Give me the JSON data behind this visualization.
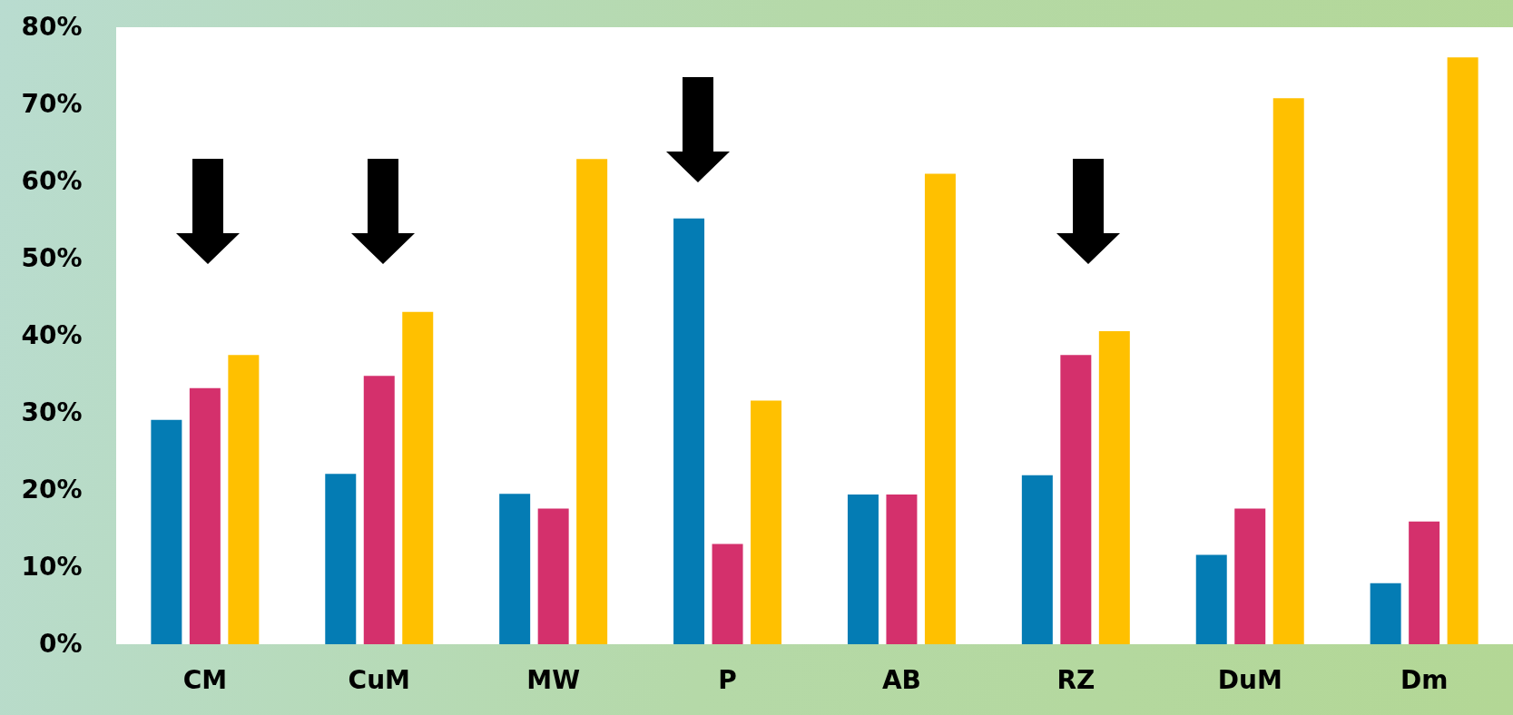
{
  "chart_data": {
    "type": "bar",
    "categories": [
      "CM",
      "CuM",
      "MW",
      "P",
      "AB",
      "RZ",
      "DuM",
      "Dm"
    ],
    "series": [
      {
        "color": "#047cb4",
        "values": [
          29.1,
          22.1,
          19.5,
          55.2,
          19.4,
          21.9,
          11.6,
          7.9
        ]
      },
      {
        "color": "#d4306c",
        "values": [
          33.2,
          34.8,
          17.6,
          13,
          19.4,
          37.5,
          17.6,
          15.9
        ]
      },
      {
        "color": "#ffc000",
        "values": [
          37.5,
          43.1,
          62.9,
          31.6,
          61,
          40.6,
          70.8,
          76.1
        ]
      }
    ],
    "ylim": [
      0,
      80
    ],
    "yticks": [
      {
        "value": 0,
        "label": "0%"
      },
      {
        "value": 10,
        "label": "10%"
      },
      {
        "value": 20,
        "label": "20%"
      },
      {
        "value": 30,
        "label": "30%"
      },
      {
        "value": 40,
        "label": "40%"
      },
      {
        "value": 50,
        "label": "50%"
      },
      {
        "value": 60,
        "label": "60%"
      },
      {
        "value": 70,
        "label": "70%"
      },
      {
        "value": 80,
        "label": "80%"
      }
    ],
    "grid": false,
    "legend": false
  }
}
